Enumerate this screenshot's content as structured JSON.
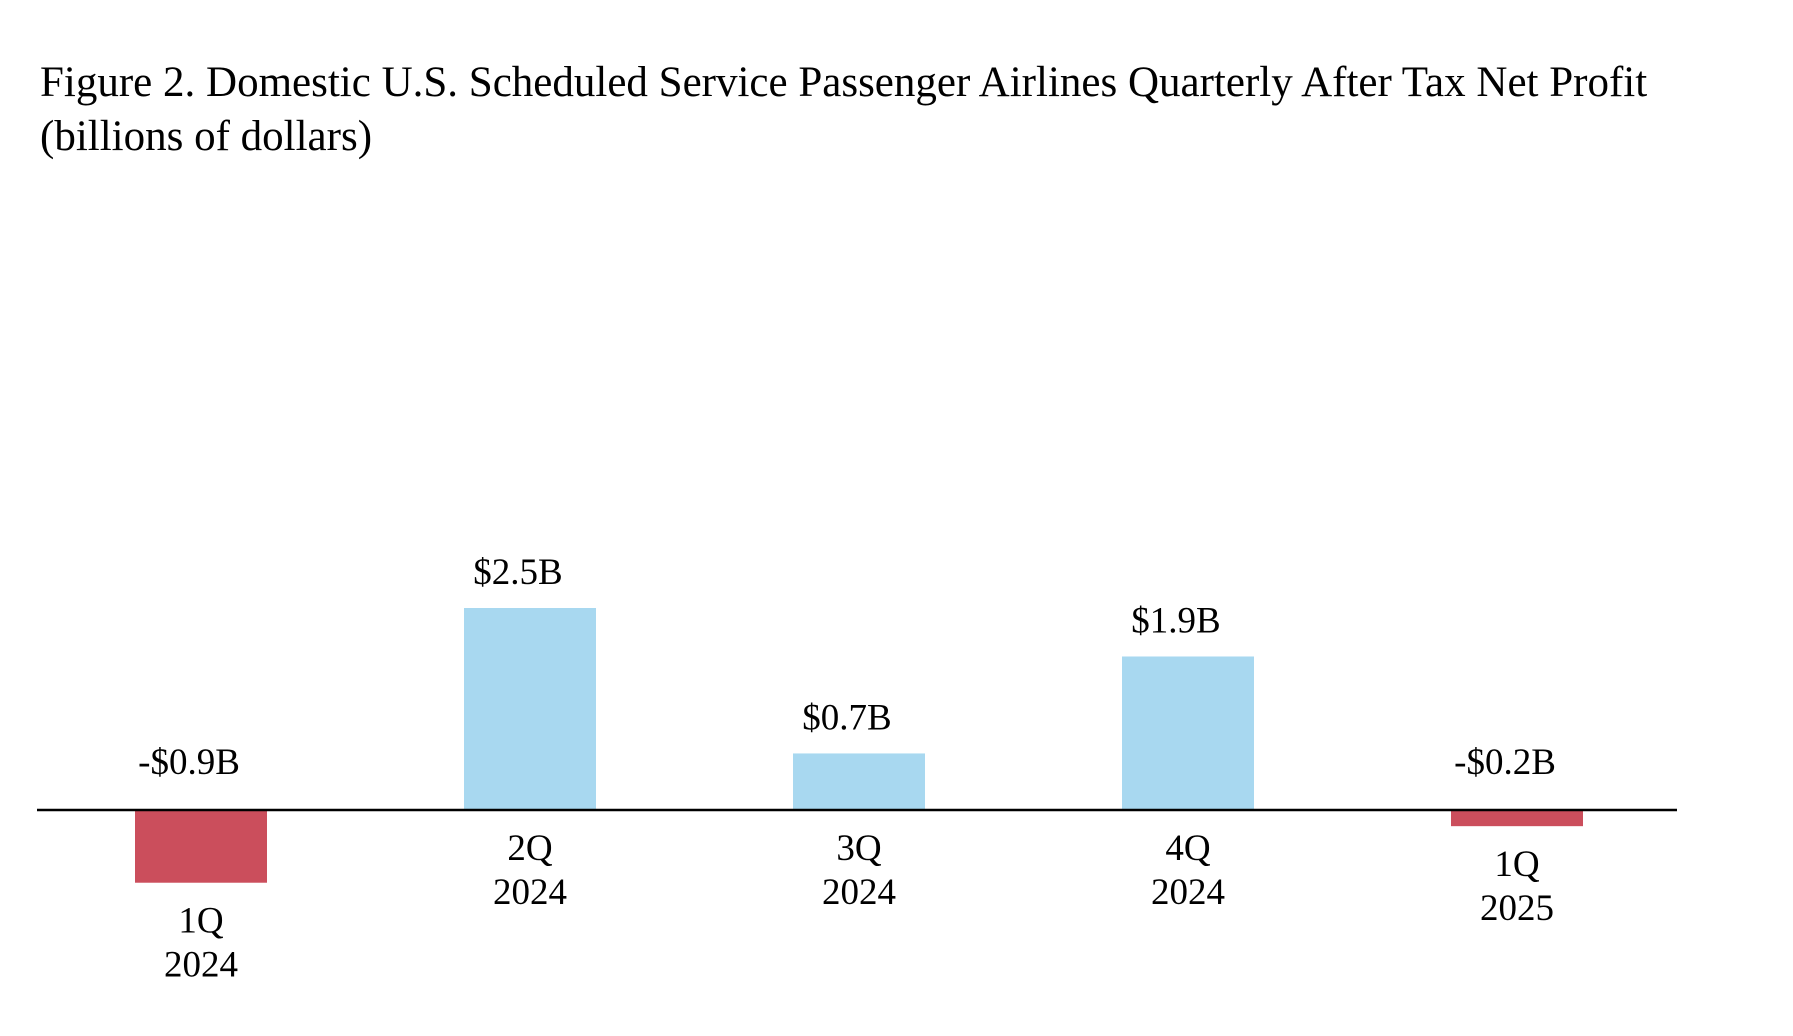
{
  "chart_data": {
    "type": "bar",
    "title": "Figure 2. Domestic U.S. Scheduled Service Passenger Airlines Quarterly After Tax Net Profit (billions of dollars)",
    "xlabel": "",
    "ylabel": "",
    "grid": false,
    "legend": "none",
    "categories": [
      {
        "line1": "1Q",
        "line2": "2024"
      },
      {
        "line1": "2Q",
        "line2": "2024"
      },
      {
        "line1": "3Q",
        "line2": "2024"
      },
      {
        "line1": "4Q",
        "line2": "2024"
      },
      {
        "line1": "1Q",
        "line2": "2025"
      }
    ],
    "values": [
      -0.9,
      2.5,
      0.7,
      1.9,
      -0.2
    ],
    "data_labels": [
      "-$0.9B",
      "$2.5B",
      "$0.7B",
      "$1.9B",
      "-$0.2B"
    ],
    "ylim": [
      -1.5,
      10
    ],
    "colors": {
      "positive": "#a8d8f0",
      "negative": "#cb4e5c",
      "axis": "#000000"
    }
  }
}
